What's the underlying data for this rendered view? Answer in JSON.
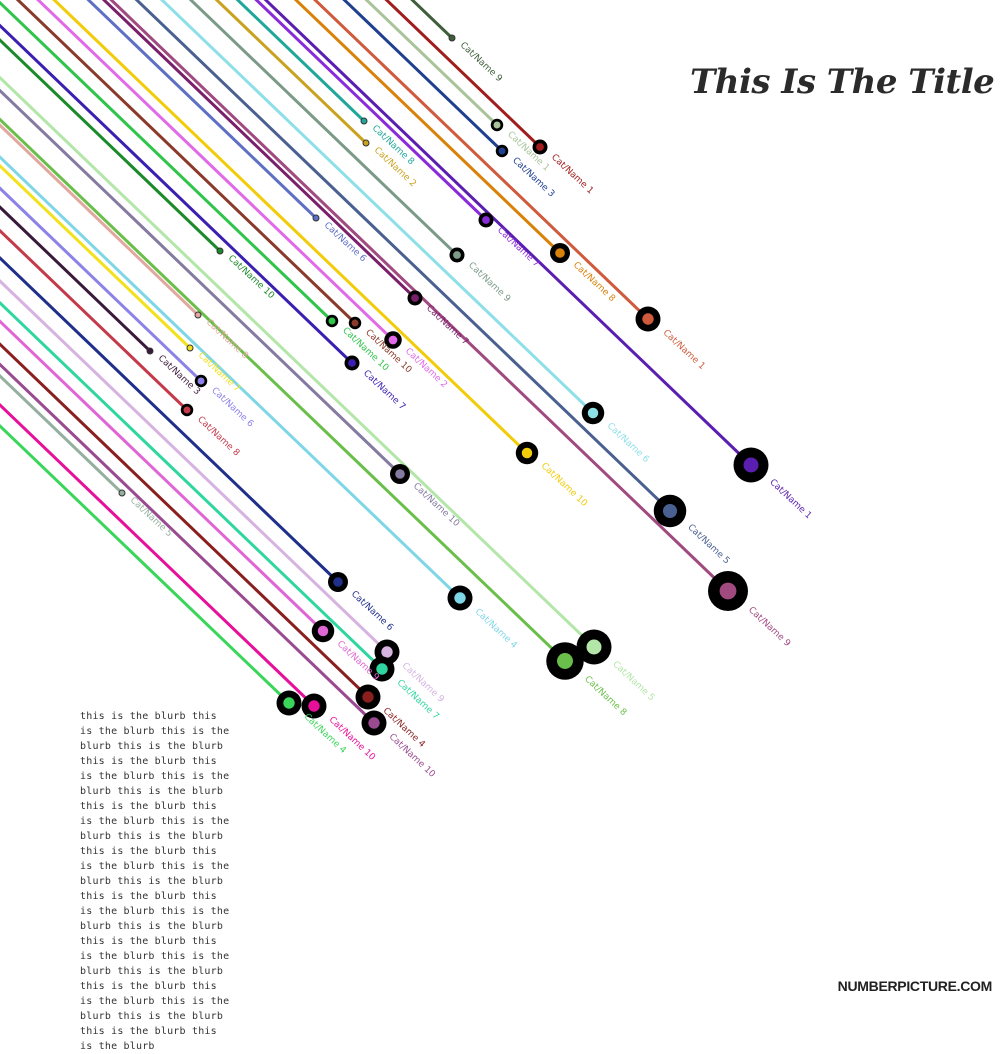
{
  "title": "This Is The Title",
  "blurb": "this is the blurb this is the blurb this is the blurb this is the blurb this is the blurb this is the blurb this is the blurb this is the blurb this is the blurb this is the blurb this is the blurb this is the blurb this is the blurb this is the blurb this is the blurb this is the blurb this is the blurb this is the blurb this is the blurb this is the blurb this is the blurb this is the blurb this is the blurb this is the blurb this is the blurb this is the blurb this is the blurb this is the blurb this is the blurb this is the blurb",
  "brand": "NUMBERPICTURE.COM",
  "chart_data": {
    "type": "line",
    "title": "This Is The Title",
    "items": [
      {
        "label": "Cat/Name 9",
        "color": "#3f5e3a",
        "value": 0,
        "end": [
          452,
          38
        ]
      },
      {
        "label": "Cat/Name 1",
        "color": "#a11d1d",
        "value": 2,
        "end": [
          540,
          147
        ]
      },
      {
        "label": "Cat/Name 1",
        "color": "#a9c49a",
        "value": 1,
        "end": [
          497,
          125
        ]
      },
      {
        "label": "Cat/Name 3",
        "color": "#1f3f8f",
        "value": 1,
        "end": [
          502,
          151
        ]
      },
      {
        "label": "Cat/Name 8",
        "color": "#1fa79a",
        "value": 0,
        "end": [
          364,
          121
        ]
      },
      {
        "label": "Cat/Name 2",
        "color": "#c9a21f",
        "value": 0,
        "end": [
          366,
          143
        ]
      },
      {
        "label": "Cat/Name 7",
        "color": "#8a2bd9",
        "value": 2,
        "end": [
          486,
          220
        ]
      },
      {
        "label": "Cat/Name 8",
        "color": "#d9820a",
        "value": 4,
        "end": [
          560,
          253
        ]
      },
      {
        "label": "Cat/Name 6",
        "color": "#5e6fc4",
        "value": 0,
        "end": [
          316,
          218
        ]
      },
      {
        "label": "Cat/Name 9",
        "color": "#7c9a88",
        "value": 2,
        "end": [
          457,
          255
        ]
      },
      {
        "label": "Cat/Name 1",
        "color": "#cf5a3c",
        "value": 6,
        "end": [
          648,
          319
        ]
      },
      {
        "label": "Cat/Name 7",
        "color": "#7a1f6a",
        "value": 2,
        "end": [
          415,
          298
        ]
      },
      {
        "label": "Cat/Name 10",
        "color": "#1b8a2a",
        "value": 0,
        "end": [
          220,
          251
        ]
      },
      {
        "label": "Cat/Name 10",
        "color": "#2fc44a",
        "value": 1,
        "end": [
          332,
          321
        ]
      },
      {
        "label": "Cat/Name 10",
        "color": "#8a3a2a",
        "value": 1,
        "end": [
          355,
          323
        ]
      },
      {
        "label": "Cat/Name 2",
        "color": "#e06ae8",
        "value": 3,
        "end": [
          393,
          340
        ]
      },
      {
        "label": "Cat/Name 7",
        "color": "#3b1fb0",
        "value": 2,
        "end": [
          352,
          363
        ]
      },
      {
        "label": "Cat/Name 8",
        "color": "#e0a89e",
        "value": 0,
        "end": [
          198,
          315
        ]
      },
      {
        "label": "Cat/Name 7",
        "color": "#f2e11c",
        "value": 0,
        "end": [
          190,
          348
        ]
      },
      {
        "label": "Cat/Name 6",
        "color": "#8c82e8",
        "value": 1,
        "end": [
          201,
          381
        ]
      },
      {
        "label": "Cat/Name 8",
        "color": "#c43a4a",
        "value": 1,
        "end": [
          187,
          410
        ]
      },
      {
        "label": "Cat/Name 3",
        "color": "#3a1a3a",
        "value": 0,
        "end": [
          150,
          351
        ]
      },
      {
        "label": "Cat/Name 1",
        "color": "#5a1fb0",
        "value": 10,
        "end": [
          751,
          465
        ]
      },
      {
        "label": "Cat/Name 6",
        "color": "#8ddfe8",
        "value": 5,
        "end": [
          593,
          413
        ]
      },
      {
        "label": "Cat/Name 10",
        "color": "#f2cc0a",
        "value": 5,
        "end": [
          527,
          453
        ]
      },
      {
        "label": "Cat/Name 5",
        "color": "#4a6090",
        "value": 9,
        "end": [
          670,
          511
        ]
      },
      {
        "label": "Cat/Name 9",
        "color": "#a04a80",
        "value": 12,
        "end": [
          728,
          591
        ]
      },
      {
        "label": "Cat/Name 10",
        "color": "#857aa0",
        "value": 4,
        "end": [
          400,
          474
        ]
      },
      {
        "label": "Cat/Name 5",
        "color": "#96b0a0",
        "value": 0,
        "end": [
          122,
          493
        ]
      },
      {
        "label": "Cat/Name 4",
        "color": "#7fd6e6",
        "value": 6,
        "end": [
          460,
          598
        ]
      },
      {
        "label": "Cat/Name 5",
        "color": "#b3e6a8",
        "value": 10,
        "end": [
          594,
          647
        ]
      },
      {
        "label": "Cat/Name 8",
        "color": "#6abf4a",
        "value": 11,
        "end": [
          565,
          661
        ]
      },
      {
        "label": "Cat/Name 6",
        "color": "#1f2f8a",
        "value": 4,
        "end": [
          338,
          582
        ]
      },
      {
        "label": "Cat/Name 9",
        "color": "#e066d6",
        "value": 5,
        "end": [
          323,
          631
        ]
      },
      {
        "label": "Cat/Name 9",
        "color": "#d6b3e0",
        "value": 6,
        "end": [
          387,
          652
        ]
      },
      {
        "label": "Cat/Name 7",
        "color": "#2fd6a0",
        "value": 6,
        "end": [
          382,
          669
        ]
      },
      {
        "label": "Cat/Name 4",
        "color": "#8a1f1f",
        "value": 6,
        "end": [
          368,
          697
        ]
      },
      {
        "label": "Cat/Name 10",
        "color": "#9a4a90",
        "value": 6,
        "end": [
          374,
          723
        ]
      },
      {
        "label": "Cat/Name 10",
        "color": "#e6109a",
        "value": 6,
        "end": [
          314,
          706
        ]
      },
      {
        "label": "Cat/Name 4",
        "color": "#3ad65a",
        "value": 6,
        "end": [
          289,
          703
        ]
      }
    ]
  }
}
